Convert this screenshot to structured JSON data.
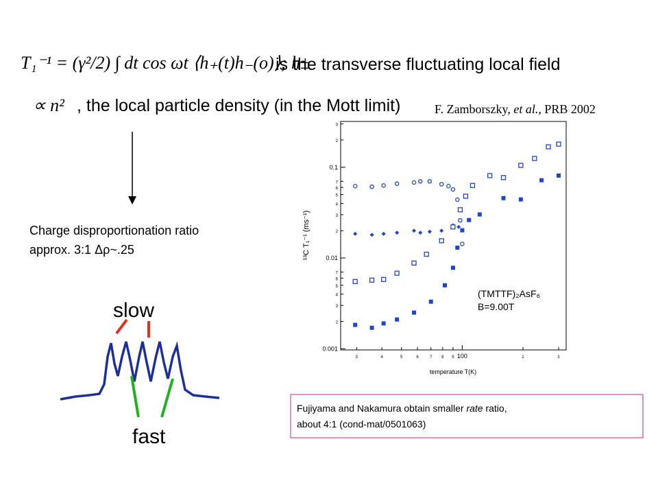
{
  "equation_1": {
    "formula": "T₁⁻¹ = (γ²/2) ∫ dt cos ωt ⟨h₊(t)h₋(o)⟩; h±",
    "text": "is the transverse fluctuating local field"
  },
  "equation_2": {
    "formula": "∝ n²",
    "text": ", the local particle density (in the Mott limit)"
  },
  "citation": {
    "author": "F. Zamborszky,",
    "etal": "et al.",
    "ref": ", PRB 2002"
  },
  "charge": {
    "line_1": "Charge disproportionation ratio",
    "line_2": "approx. 3:1 Δρ~.25"
  },
  "spectrum": {
    "slow": "slow",
    "fast": "fast"
  },
  "note": {
    "part_1": "Fujiyama and Nakamura obtain smaller ",
    "part_2": "rate",
    "part_3": " ratio,",
    "line_2": "about 4:1 (cond-mat/0501063)"
  },
  "chart_data": {
    "type": "scatter",
    "x_label": "temperature T(K)",
    "y_label": "¹³C T₁⁻¹ (ms⁻¹)",
    "annotations": [
      "(TMTTF)₂AsF₆",
      "B=9.00T"
    ],
    "xscale": "log",
    "yscale": "log",
    "xlim": [
      25,
      327
    ],
    "ylim": [
      0.00097,
      0.32
    ],
    "xticks": [
      {
        "value": 30,
        "label": "3"
      },
      {
        "value": 40,
        "label": "4"
      },
      {
        "value": 50,
        "label": "5"
      },
      {
        "value": 60,
        "label": "6"
      },
      {
        "value": 70,
        "label": "7"
      },
      {
        "value": 80,
        "label": "8"
      },
      {
        "value": 90,
        "label": "9"
      },
      100,
      {
        "value": 200,
        "label": "2"
      },
      {
        "value": 300,
        "label": "3"
      }
    ],
    "yticks": [
      0.001,
      {
        "value": 0.002,
        "label": "2"
      },
      {
        "value": 0.003,
        "label": "3"
      },
      {
        "value": 0.004,
        "label": "4"
      },
      {
        "value": 0.005,
        "label": "5"
      },
      {
        "value": 0.006,
        "label": "6"
      },
      {
        "value": 0.007,
        "label": "7"
      },
      0.01,
      {
        "value": 0.02,
        "label": "2"
      },
      {
        "value": 0.03,
        "label": "3"
      },
      {
        "value": 0.04,
        "label": "4"
      },
      {
        "value": 0.05,
        "label": "5"
      },
      {
        "value": 0.06,
        "label": "6"
      },
      {
        "value": 0.07,
        "label": "7"
      },
      0.1,
      {
        "value": 0.2,
        "label": "2"
      },
      {
        "value": 0.3,
        "label": "3"
      }
    ],
    "series": [
      {
        "color": "#1f45c8",
        "marker": "circle-open",
        "x": [
          29.5,
          35.7,
          40.8,
          47.5,
          57.7,
          62,
          69,
          79,
          85.5,
          90,
          94.6,
          97.7,
          100
        ],
        "values": [
          0.062,
          0.061,
          0.063,
          0.066,
          0.068,
          0.07,
          0.07,
          0.065,
          0.062,
          0.057,
          0.044,
          0.026,
          0.0143
        ]
      },
      {
        "color": "#1f45c8",
        "marker": "diamond",
        "x": [
          29.5,
          35.7,
          40.8,
          47.5,
          57.7,
          62,
          69,
          79,
          90,
          96
        ],
        "values": [
          0.0185,
          0.018,
          0.0185,
          0.019,
          0.02,
          0.019,
          0.0195,
          0.02,
          0.023,
          0.022
        ]
      },
      {
        "color": "#1f45c8",
        "marker": "square-open",
        "x": [
          29.5,
          35.7,
          40.8,
          47.5,
          57.7,
          66.5,
          79,
          90,
          97.7,
          104,
          112.5,
          137,
          160,
          195,
          228,
          267,
          300
        ],
        "values": [
          0.0055,
          0.0057,
          0.0058,
          0.0068,
          0.0088,
          0.011,
          0.0155,
          0.022,
          0.034,
          0.048,
          0.063,
          0.081,
          0.077,
          0.105,
          0.125,
          0.168,
          0.18
        ]
      },
      {
        "color": "#1f45c8",
        "marker": "square",
        "x": [
          29.5,
          35.7,
          40.8,
          47.5,
          57.7,
          70,
          82,
          90,
          94.6,
          100,
          108,
          122,
          160,
          195,
          247,
          300
        ],
        "values": [
          0.00183,
          0.0017,
          0.0019,
          0.0021,
          0.0025,
          0.0033,
          0.005,
          0.0078,
          0.013,
          0.0202,
          0.0262,
          0.0302,
          0.0457,
          0.0442,
          0.072,
          0.081
        ]
      }
    ]
  }
}
